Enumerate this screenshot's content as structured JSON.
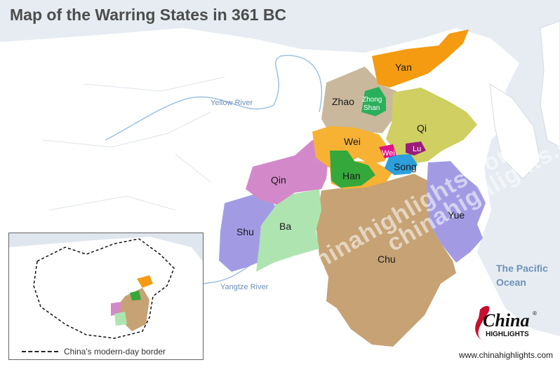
{
  "title": "Map of the Warring States in 361 BC",
  "states": {
    "yan": "Yan",
    "zhao": "Zhao",
    "zhongshan_1": "Zhong",
    "zhongshan_2": "Shan",
    "qi": "Qi",
    "wei_big": "Wei",
    "wei_small": "Wei",
    "lu": "Lu",
    "song": "Song",
    "han": "Han",
    "qin": "Qin",
    "shu": "Shu",
    "ba": "Ba",
    "yue": "Yue",
    "chu": "Chu"
  },
  "rivers": {
    "yellow": "Yellow River",
    "yangtze": "Yangtze River"
  },
  "ocean": {
    "line1": "The Pacific",
    "line2": "Ocean"
  },
  "watermark_1": "www.chinahighlights.com",
  "watermark_2": "chinahighlights.com",
  "inset": {
    "legend": "China's modern-day border"
  },
  "logo": {
    "line1": "China",
    "line2": "HIGHLIGHTS",
    "reg": "®"
  },
  "url": "www.chinahighlights.com",
  "colors": {
    "sea": "#e6ecf1",
    "land": "#ffffff",
    "yan": "#f49b11",
    "zhao": "#c9b89c",
    "zhongshan": "#2aaf5a",
    "qi": "#cfcf62",
    "wei": "#f7b234",
    "han": "#34a83a",
    "qin": "#d389c9",
    "shu": "#a29be4",
    "ba": "#aee4b0",
    "chu": "#c6a274",
    "yue": "#a29be4",
    "song": "#2c9fdc",
    "wei_small": "#e0148b",
    "lu": "#9a1d7c"
  }
}
